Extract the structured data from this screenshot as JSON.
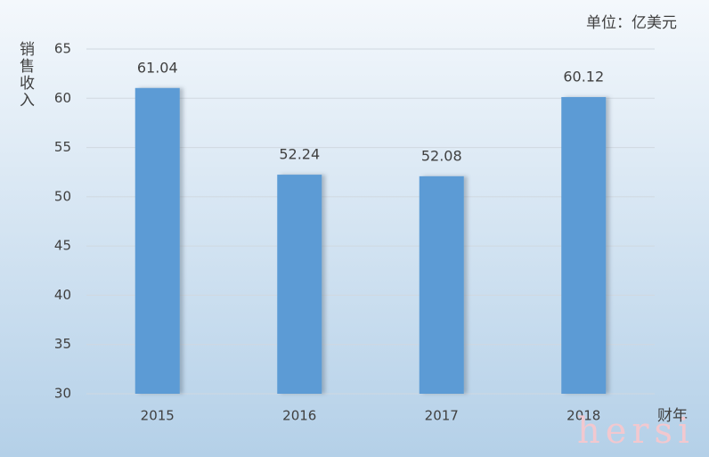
{
  "chart_data": {
    "type": "bar",
    "unit_label": "单位：亿美元",
    "y_axis_label": "销售收入",
    "x_axis_label": "财年",
    "categories": [
      "2015",
      "2016",
      "2017",
      "2018"
    ],
    "values": [
      61.04,
      52.24,
      52.08,
      60.12
    ],
    "color": "#5b9bd5",
    "ylim": [
      30,
      65
    ],
    "yticks": [
      30,
      35,
      40,
      45,
      50,
      55,
      60,
      65
    ],
    "grid": true,
    "watermark": "hersi"
  }
}
